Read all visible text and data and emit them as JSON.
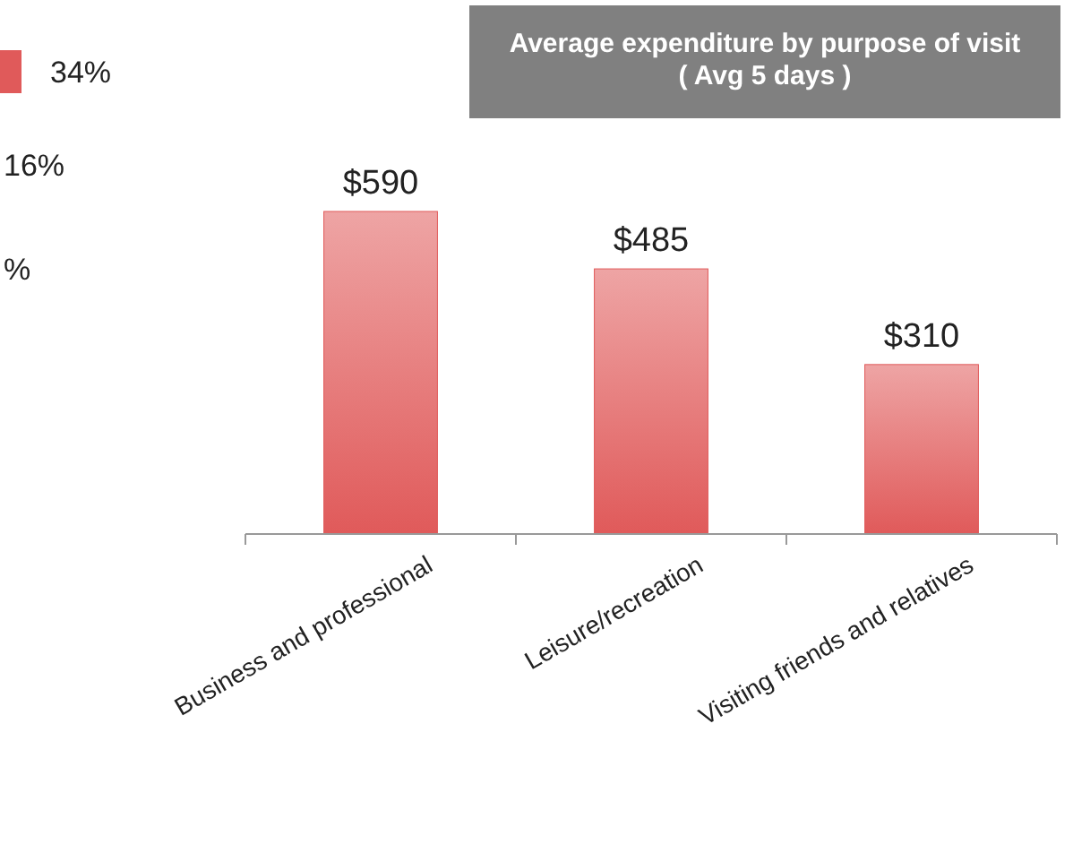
{
  "chart_data": {
    "type": "bar",
    "title": "Average expenditure by purpose of  visit\n( Avg 5 days )",
    "categories": [
      "Business and professional",
      "Leisure/recreation",
      "Visiting friends and relatives"
    ],
    "values": [
      590,
      485,
      310
    ],
    "value_labels": [
      "$590",
      "$485",
      "$310"
    ],
    "color": "#e05a5a",
    "annotations": [
      "34%",
      "16%",
      "%"
    ]
  }
}
